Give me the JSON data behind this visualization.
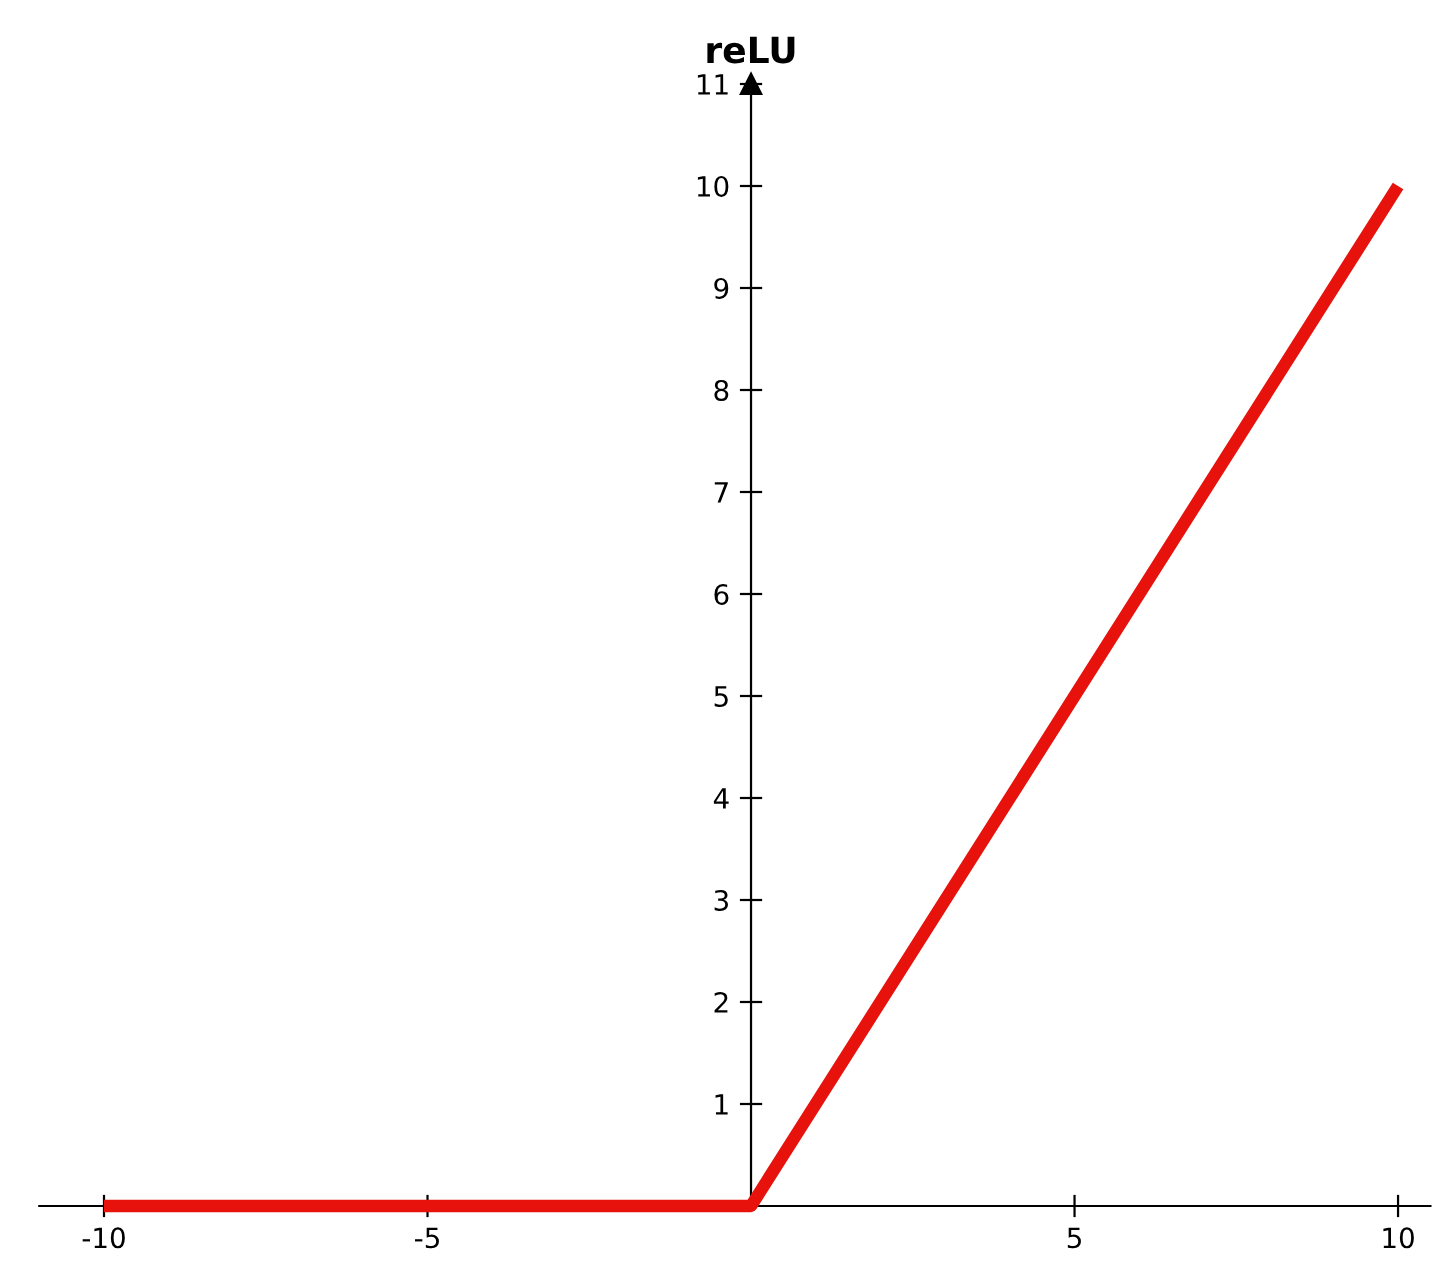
{
  "chart_data": {
    "type": "line",
    "title": "reLU",
    "x": [
      -10,
      0,
      10
    ],
    "series": [
      {
        "color": "#e8120c",
        "values": [
          0,
          0,
          10
        ]
      }
    ],
    "xlim": [
      -11,
      10.5
    ],
    "ylim": [
      0,
      11
    ],
    "xticks": [
      -10,
      -5,
      5,
      10
    ],
    "yticks": [
      1,
      2,
      3,
      4,
      5,
      6,
      7,
      8,
      9,
      10,
      11
    ],
    "grid": false,
    "marker": "none",
    "line_style": "solid"
  }
}
